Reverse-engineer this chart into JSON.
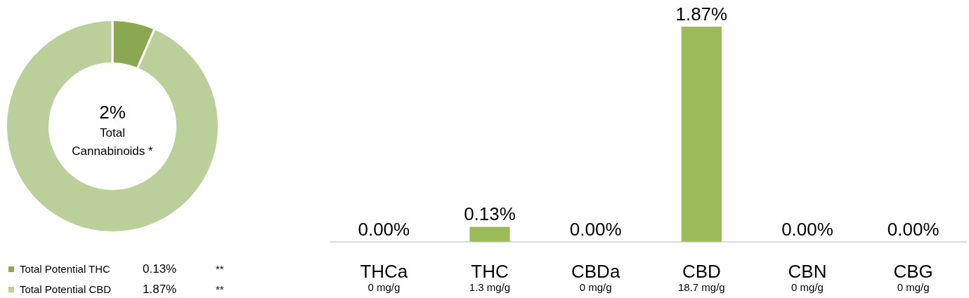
{
  "chart_data": [
    {
      "type": "donut",
      "categories": [
        "Total Potential THC",
        "Total Potential CBD"
      ],
      "values": [
        0.13,
        1.87
      ],
      "colors": [
        "#8aa752",
        "#bbcf9b"
      ],
      "value_labels": [
        "0.13%",
        "1.87%"
      ],
      "legend": "bottom",
      "annotations": [
        "2%",
        "Total Cannabinoids *",
        "**",
        "**"
      ]
    },
    {
      "type": "bar",
      "categories": [
        "THCa",
        "THC",
        "CBDa",
        "CBD",
        "CBN",
        "CBG"
      ],
      "values": [
        0,
        0.13,
        0,
        1.87,
        0,
        0
      ],
      "color": "#9bbb59",
      "value_labels": [
        "0.00%",
        "0.13%",
        "0.00%",
        "1.87%",
        "0.00%",
        "0.00%"
      ],
      "annotations": [
        "0 mg/g",
        "1.3 mg/g",
        "0 mg/g",
        "18.7 mg/g",
        "0 mg/g",
        "0 mg/g"
      ]
    }
  ]
}
